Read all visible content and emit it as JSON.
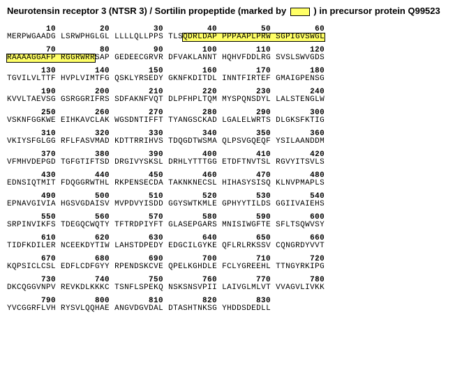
{
  "title_parts": {
    "a": "Neurotensin receptor 3 (NTSR 3) / Sortilin propeptide  (marked by ",
    "b": " ) in precursor protein Q99523"
  },
  "highlight_color": "#ffff66",
  "highlight_border": "#000000",
  "font_mono": "Courier New",
  "font_sans": "Arial",
  "background": "#ffffff",
  "rows": [
    {
      "nums": [
        10,
        20,
        30,
        40,
        50,
        60
      ],
      "blocks": [
        "MERPWGAADG",
        "LSRWPHGLGL",
        "LLLLQLLPPS",
        "TLS",
        "QDRLDAP",
        "PPPAAPLPRW",
        "SGPIGVSWGL"
      ],
      "hl": [
        false,
        false,
        false,
        false,
        true,
        true,
        true
      ],
      "split3": true
    },
    {
      "nums": [
        70,
        80,
        90,
        100,
        110,
        120
      ],
      "blocks": [
        "RAAAAGGAFP",
        "RGGRWRR",
        "SAP",
        "GEDEECGRVR",
        "DFVAKLANNT",
        "HQHVFDDLRG",
        "SVSLSWVGDS"
      ],
      "hl": [
        true,
        true,
        false,
        false,
        false,
        false,
        false
      ],
      "split2": true
    },
    {
      "nums": [
        130,
        140,
        150,
        160,
        170,
        180
      ],
      "blocks": [
        "TGVILVLTTF",
        "HVPLVIMTFG",
        "QSKLYRSEDY",
        "GKNFKDITDL",
        "INNTFIRTEF",
        "GMAIGPENSG"
      ],
      "hl": [
        false,
        false,
        false,
        false,
        false,
        false
      ]
    },
    {
      "nums": [
        190,
        200,
        210,
        220,
        230,
        240
      ],
      "blocks": [
        "KVVLTAEVSG",
        "GSRGGRIFRS",
        "SDFAKNFVQT",
        "DLPFHPLTQM",
        "MYSPQNSDYL",
        "LALSTENGLW"
      ],
      "hl": [
        false,
        false,
        false,
        false,
        false,
        false
      ]
    },
    {
      "nums": [
        250,
        260,
        270,
        280,
        290,
        300
      ],
      "blocks": [
        "VSKNFGGKWE",
        "EIHKAVCLAK",
        "WGSDNTIFFT",
        "TYANGSCKAD",
        "LGALELWRTS",
        "DLGKSFKTIG"
      ],
      "hl": [
        false,
        false,
        false,
        false,
        false,
        false
      ]
    },
    {
      "nums": [
        310,
        320,
        330,
        340,
        350,
        360
      ],
      "blocks": [
        "VKIYSFGLGG",
        "RFLFASVMAD",
        "KDTTRRIHVS",
        "TDQGDTWSMA",
        "QLPSVGQEQF",
        "YSILAANDDM"
      ],
      "hl": [
        false,
        false,
        false,
        false,
        false,
        false
      ]
    },
    {
      "nums": [
        370,
        380,
        390,
        400,
        410,
        420
      ],
      "blocks": [
        "VFMHVDEPGD",
        "TGFGTIFTSD",
        "DRGIVYSKSL",
        "DRHLYTTTGG",
        "ETDFTNVTSL",
        "RGVYITSVLS"
      ],
      "hl": [
        false,
        false,
        false,
        false,
        false,
        false
      ]
    },
    {
      "nums": [
        430,
        440,
        450,
        460,
        470,
        480
      ],
      "blocks": [
        "EDNSIQTMIT",
        "FDQGGRWTHL",
        "RKPENSECDA",
        "TAKNKNECSL",
        "HIHASYSISQ",
        "KLNVPMAPLS"
      ],
      "hl": [
        false,
        false,
        false,
        false,
        false,
        false
      ]
    },
    {
      "nums": [
        490,
        500,
        510,
        520,
        530,
        540
      ],
      "blocks": [
        "EPNAVGIVIA",
        "HGSVGDAISV",
        "MVPDVYISDD",
        "GGYSWTKMLE",
        "GPHYYTILDS",
        "GGIIVAIEHS"
      ],
      "hl": [
        false,
        false,
        false,
        false,
        false,
        false
      ]
    },
    {
      "nums": [
        550,
        560,
        570,
        580,
        590,
        600
      ],
      "blocks": [
        "SRPINVIKFS",
        "TDEGQCWQTY",
        "TFTRDPIYFT",
        "GLASEPGARS",
        "MNISIWGFTE",
        "SFLTSQWVSY"
      ],
      "hl": [
        false,
        false,
        false,
        false,
        false,
        false
      ]
    },
    {
      "nums": [
        610,
        620,
        630,
        640,
        650,
        660
      ],
      "blocks": [
        "TIDFKDILER",
        "NCEEKDYTIW",
        "LAHSTDPEDY",
        "EDGCILGYKE",
        "QFLRLRKSSV",
        "CQNGRDYVVT"
      ],
      "hl": [
        false,
        false,
        false,
        false,
        false,
        false
      ]
    },
    {
      "nums": [
        670,
        680,
        690,
        700,
        710,
        720
      ],
      "blocks": [
        "KQPSICLCSL",
        "EDFLCDFGYY",
        "RPENDSKCVE",
        "QPELKGHDLE",
        "FCLYGREEHL",
        "TTNGYRKIPG"
      ],
      "hl": [
        false,
        false,
        false,
        false,
        false,
        false
      ]
    },
    {
      "nums": [
        730,
        740,
        750,
        760,
        770,
        780
      ],
      "blocks": [
        "DKCQGGVNPV",
        "REVKDLKKKC",
        "TSNFLSPEKQ",
        "NSKSNSVPII",
        "LAIVGLMLVT",
        "VVAGVLIVKK"
      ],
      "hl": [
        false,
        false,
        false,
        false,
        false,
        false
      ]
    },
    {
      "nums": [
        790,
        800,
        810,
        820,
        830
      ],
      "blocks": [
        "YVCGGRFLVH",
        "RYSVLQQHAE",
        "ANGVDGVDAL",
        "DTASHTNKSG",
        "YHDDSDEDLL"
      ],
      "hl": [
        false,
        false,
        false,
        false,
        false
      ]
    }
  ]
}
